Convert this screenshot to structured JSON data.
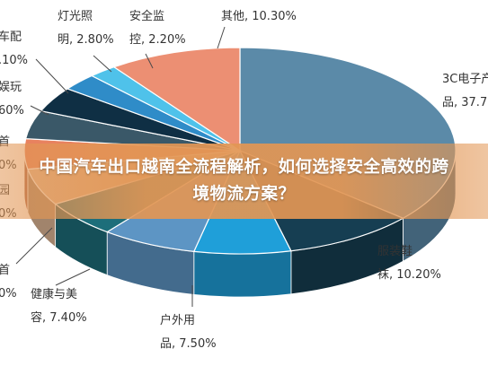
{
  "banner": {
    "title": "中国汽车出口越南全流程解析，如何选择安全高效的跨境物流方案？"
  },
  "chart_data": {
    "type": "pie",
    "style": "3d",
    "series": [
      {
        "label_lines": [
          "3C电子产",
          "品, 37.7"
        ],
        "value": 37.7,
        "color": "#5b8aa8"
      },
      {
        "label_lines": [
          "服装鞋",
          "袜, 10.20%"
        ],
        "value": 10.2,
        "color": "#163e52"
      },
      {
        "label_lines": [
          "户外用",
          "品, 7.50%"
        ],
        "value": 7.5,
        "color": "#1f9fd9"
      },
      {
        "label_lines": [
          "健康与美",
          "容, 7.40%"
        ],
        "value": 7.4,
        "color": "#5d95c4"
      },
      {
        "label_lines": [
          "首",
          "0%"
        ],
        "value": 6.0,
        "color": "#1d6e7a"
      },
      {
        "label_lines": [
          "园",
          "0%"
        ],
        "value": 6.0,
        "color": "#e0b896"
      },
      {
        "label_lines": [
          "首",
          "0%"
        ],
        "value": 4.9,
        "color": "#e8825f"
      },
      {
        "label_lines": [
          "娱玩",
          "60%"
        ],
        "value": 4.6,
        "color": "#3a5868"
      },
      {
        "label_lines": [
          "车配",
          ".10%"
        ],
        "value": 4.1,
        "color": "#0f2f44"
      },
      {
        "label_lines": [
          "灯光照",
          "明, 2.80%"
        ],
        "value": 2.8,
        "color": "#2f8cc8"
      },
      {
        "label_lines": [
          "安全监",
          "控, 2.20%"
        ],
        "value": 2.2,
        "color": "#4fc2ea"
      },
      {
        "label_lines": [
          "其他, 10.30%"
        ],
        "value": 10.3,
        "color": "#ec8f73"
      }
    ]
  }
}
